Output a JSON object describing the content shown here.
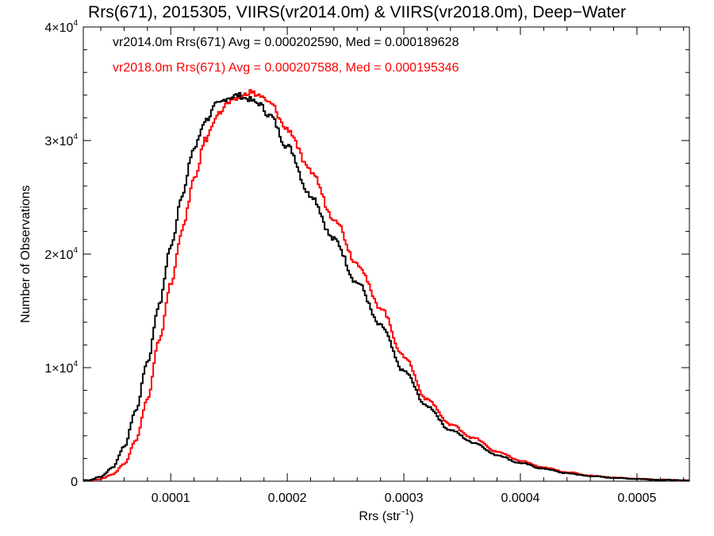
{
  "chart_data": {
    "type": "line",
    "title": "Rrs(671), 2015305, VIIRS(vr2014.0m) & VIIRS(vr2018.0m), Deep−Water",
    "xlabel": "Rrs (str",
    "xlabel_sup": "−1",
    "xlabel_close": ")",
    "ylabel": "Number of Observations",
    "xlim": [
      2.5e-05,
      0.000545
    ],
    "ylim": [
      0,
      40000
    ],
    "grid": false,
    "x_ticks": [
      {
        "value": 0.0001,
        "label": "0.0001"
      },
      {
        "value": 0.0002,
        "label": "0.0002"
      },
      {
        "value": 0.0003,
        "label": "0.0003"
      },
      {
        "value": 0.0004,
        "label": "0.0004"
      },
      {
        "value": 0.0005,
        "label": "0.0005"
      }
    ],
    "y_ticks": [
      {
        "value": 0,
        "mant": "0",
        "exp": ""
      },
      {
        "value": 10000,
        "mant": "1×10",
        "exp": "4"
      },
      {
        "value": 20000,
        "mant": "2×10",
        "exp": "4"
      },
      {
        "value": 30000,
        "mant": "3×10",
        "exp": "4"
      },
      {
        "value": 40000,
        "mant": "4×10",
        "exp": "4"
      }
    ],
    "annotations": [
      {
        "text": "vr2014.0m Rrs(671) Avg = 0.000202590, Med = 0.000189628",
        "color": "#000000"
      },
      {
        "text": "vr2018.0m Rrs(671) Avg = 0.000207588, Med = 0.000195346",
        "color": "#ff0000"
      }
    ],
    "series": [
      {
        "color": "#000000",
        "x": [
          3e-05,
          4e-05,
          5e-05,
          6e-05,
          7e-05,
          8e-05,
          9e-05,
          0.0001,
          0.00011,
          0.00012,
          0.00013,
          0.00014,
          0.00015,
          0.000158,
          0.000165,
          0.000175,
          0.000185,
          0.0002,
          0.00022,
          0.00024,
          0.00026,
          0.00028,
          0.0003,
          0.00032,
          0.00034,
          0.00036,
          0.00038,
          0.0004,
          0.00042,
          0.00044,
          0.00046,
          0.00048,
          0.0005,
          0.00052,
          0.000545
        ],
        "y": [
          100,
          400,
          1200,
          3000,
          6200,
          10500,
          15500,
          20600,
          25300,
          29300,
          31800,
          33200,
          33800,
          34000,
          33700,
          33300,
          32200,
          29500,
          25200,
          21300,
          17500,
          13700,
          9700,
          6600,
          4500,
          3400,
          2300,
          1600,
          1100,
          700,
          450,
          300,
          200,
          120,
          60
        ]
      },
      {
        "color": "#ff0000",
        "x": [
          3e-05,
          4e-05,
          5e-05,
          6e-05,
          7e-05,
          8e-05,
          9e-05,
          0.0001,
          0.00011,
          0.00012,
          0.00013,
          0.00014,
          0.00015,
          0.00016,
          0.000168,
          0.000175,
          0.000185,
          0.0002,
          0.00022,
          0.00024,
          0.00026,
          0.00028,
          0.0003,
          0.00032,
          0.00034,
          0.00036,
          0.00038,
          0.0004,
          0.00042,
          0.00044,
          0.00046,
          0.00048,
          0.0005,
          0.00052,
          0.000545
        ],
        "y": [
          50,
          200,
          600,
          1500,
          3600,
          7200,
          12300,
          17300,
          22200,
          26500,
          30100,
          32300,
          33300,
          33800,
          34300,
          34000,
          33300,
          31000,
          27300,
          23200,
          19200,
          15300,
          11000,
          7200,
          5000,
          3800,
          2600,
          1800,
          1200,
          800,
          500,
          320,
          220,
          130,
          70
        ]
      }
    ]
  }
}
